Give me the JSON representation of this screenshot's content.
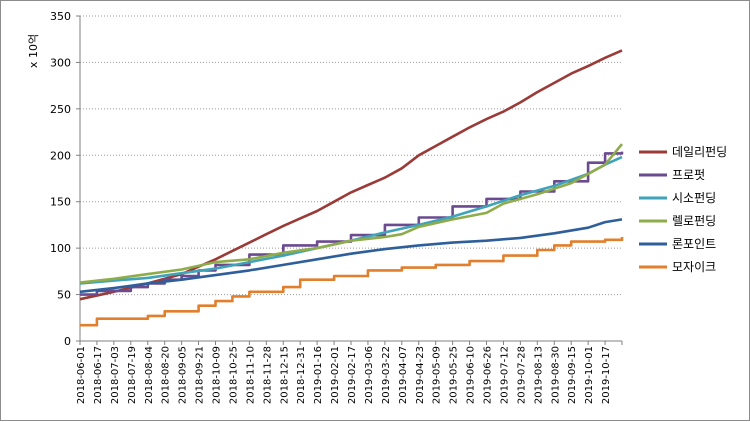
{
  "chart_data": {
    "type": "line",
    "title": "",
    "xlabel": "",
    "ylabel": "x 10억",
    "ylim": [
      0,
      350
    ],
    "y_ticks": [
      0,
      50,
      100,
      150,
      200,
      250,
      300,
      350
    ],
    "grid": true,
    "legend_position": "right",
    "x_ticks": [
      "2018-06-01",
      "2018-06-17",
      "2018-07-03",
      "2018-07-19",
      "2018-08-04",
      "2018-08-20",
      "2018-09-05",
      "2018-09-21",
      "2018-10-09",
      "2018-10-25",
      "2018-11-10",
      "2018-11-28",
      "2018-12-15",
      "2018-12-31",
      "2019-01-16",
      "2019-02-01",
      "2019-02-17",
      "2019-03-06",
      "2019-03-22",
      "2019-04-07",
      "2019-04-23",
      "2019-05-09",
      "2019-05-25",
      "2019-06-10",
      "2019-06-26",
      "2019-07-12",
      "2019-07-28",
      "2019-08-13",
      "2019-08-30",
      "2019-09-15",
      "2019-10-01",
      "2019-10-17"
    ],
    "series": [
      {
        "name": "데일리펀딩",
        "color": "#9b3b38",
        "step": false,
        "points": [
          [
            0,
            45
          ],
          [
            2,
            53
          ],
          [
            4,
            62
          ],
          [
            6,
            72
          ],
          [
            7,
            80
          ],
          [
            8,
            88
          ],
          [
            9,
            97
          ],
          [
            10,
            106
          ],
          [
            11,
            115
          ],
          [
            12,
            124
          ],
          [
            13,
            132
          ],
          [
            14,
            140
          ],
          [
            15,
            150
          ],
          [
            16,
            160
          ],
          [
            17,
            168
          ],
          [
            18,
            176
          ],
          [
            19,
            186
          ],
          [
            20,
            200
          ],
          [
            21,
            210
          ],
          [
            22,
            220
          ],
          [
            23,
            230
          ],
          [
            24,
            239
          ],
          [
            25,
            247
          ],
          [
            26,
            257
          ],
          [
            27,
            268
          ],
          [
            28,
            278
          ],
          [
            29,
            288
          ],
          [
            30,
            296
          ],
          [
            31,
            305
          ],
          [
            32,
            313
          ]
        ]
      },
      {
        "name": "프로펏",
        "color": "#6b4a8f",
        "step": true,
        "points": [
          [
            0,
            50
          ],
          [
            1,
            54
          ],
          [
            3,
            58
          ],
          [
            4,
            62
          ],
          [
            5,
            66
          ],
          [
            6,
            70
          ],
          [
            7,
            76
          ],
          [
            8,
            82
          ],
          [
            10,
            93
          ],
          [
            12,
            103
          ],
          [
            14,
            107
          ],
          [
            16,
            114
          ],
          [
            18,
            125
          ],
          [
            20,
            133
          ],
          [
            22,
            145
          ],
          [
            24,
            153
          ],
          [
            26,
            161
          ],
          [
            28,
            172
          ],
          [
            30,
            192
          ],
          [
            31,
            202
          ],
          [
            32,
            204
          ]
        ]
      },
      {
        "name": "시소펀딩",
        "color": "#3fa3b9",
        "step": false,
        "points": [
          [
            0,
            62
          ],
          [
            2,
            65
          ],
          [
            4,
            68
          ],
          [
            6,
            73
          ],
          [
            8,
            78
          ],
          [
            10,
            85
          ],
          [
            12,
            92
          ],
          [
            14,
            100
          ],
          [
            16,
            108
          ],
          [
            18,
            117
          ],
          [
            20,
            125
          ],
          [
            22,
            134
          ],
          [
            24,
            145
          ],
          [
            26,
            157
          ],
          [
            28,
            167
          ],
          [
            30,
            180
          ],
          [
            31,
            190
          ],
          [
            32,
            198
          ]
        ]
      },
      {
        "name": "렐로펀딩",
        "color": "#8eac4a",
        "step": false,
        "points": [
          [
            0,
            63
          ],
          [
            2,
            67
          ],
          [
            4,
            72
          ],
          [
            6,
            77
          ],
          [
            8,
            85
          ],
          [
            10,
            88
          ],
          [
            12,
            95
          ],
          [
            14,
            100
          ],
          [
            16,
            108
          ],
          [
            18,
            112
          ],
          [
            19,
            115
          ],
          [
            20,
            123
          ],
          [
            22,
            131
          ],
          [
            24,
            138
          ],
          [
            25,
            148
          ],
          [
            27,
            158
          ],
          [
            29,
            170
          ],
          [
            31,
            190
          ],
          [
            32,
            212
          ]
        ]
      },
      {
        "name": "론포인트",
        "color": "#2e5f9b",
        "step": false,
        "points": [
          [
            0,
            53
          ],
          [
            2,
            57
          ],
          [
            4,
            62
          ],
          [
            6,
            66
          ],
          [
            8,
            71
          ],
          [
            10,
            76
          ],
          [
            12,
            82
          ],
          [
            14,
            88
          ],
          [
            16,
            94
          ],
          [
            18,
            99
          ],
          [
            20,
            103
          ],
          [
            22,
            106
          ],
          [
            24,
            108
          ],
          [
            26,
            111
          ],
          [
            28,
            116
          ],
          [
            30,
            122
          ],
          [
            31,
            128
          ],
          [
            32,
            131
          ]
        ]
      },
      {
        "name": "모자이크",
        "color": "#e17f2d",
        "step": true,
        "points": [
          [
            0,
            17
          ],
          [
            1,
            24
          ],
          [
            4,
            27
          ],
          [
            5,
            32
          ],
          [
            7,
            38
          ],
          [
            8,
            43
          ],
          [
            9,
            48
          ],
          [
            10,
            53
          ],
          [
            12,
            58
          ],
          [
            13,
            66
          ],
          [
            15,
            70
          ],
          [
            17,
            76
          ],
          [
            19,
            79
          ],
          [
            21,
            82
          ],
          [
            23,
            86
          ],
          [
            25,
            92
          ],
          [
            27,
            98
          ],
          [
            28,
            103
          ],
          [
            29,
            107
          ],
          [
            31,
            109
          ],
          [
            32,
            112
          ]
        ]
      }
    ]
  }
}
